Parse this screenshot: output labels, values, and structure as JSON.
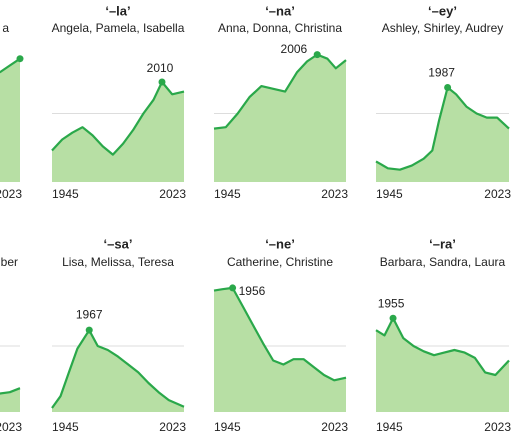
{
  "chart_data": [
    {
      "type": "area",
      "subtitle": "a",
      "xlim": [
        1945,
        2023
      ],
      "xticks": [
        2023
      ],
      "ylim": [
        0,
        100
      ],
      "end_dot": true,
      "color": "#2aa84a",
      "x": [
        2011,
        2017,
        2023
      ],
      "values": [
        80,
        85,
        90
      ]
    },
    {
      "type": "area",
      "title": "‘–la’",
      "subtitle": "Angela, Pamela, Isabella",
      "xlim": [
        1945,
        2023
      ],
      "xticks": [
        1945,
        2023
      ],
      "ylim": [
        0,
        100
      ],
      "peak": 2010,
      "color": "#2aa84a",
      "x": [
        1945,
        1951,
        1957,
        1963,
        1969,
        1975,
        1981,
        1987,
        1993,
        1999,
        2005,
        2010,
        2016,
        2023
      ],
      "values": [
        23,
        31,
        36,
        40,
        34,
        26,
        20,
        28,
        38,
        50,
        60,
        73,
        64,
        66
      ]
    },
    {
      "type": "area",
      "title": "‘–na’",
      "subtitle": "Anna, Donna, Christina",
      "xlim": [
        1945,
        2023
      ],
      "xticks": [
        1945,
        2023
      ],
      "ylim": [
        0,
        100
      ],
      "peak": 2006,
      "color": "#2aa84a",
      "x": [
        1945,
        1952,
        1959,
        1966,
        1973,
        1980,
        1987,
        1994,
        2000,
        2006,
        2012,
        2017,
        2023
      ],
      "values": [
        39,
        40,
        50,
        62,
        70,
        68,
        66,
        80,
        88,
        93,
        90,
        83,
        89
      ]
    },
    {
      "type": "area",
      "title": "‘–ey’",
      "subtitle": "Ashley, Shirley, Audrey",
      "xlim": [
        1945,
        2023
      ],
      "xticks": [
        1945,
        2023
      ],
      "ylim": [
        0,
        100
      ],
      "peak": 1987,
      "color": "#2aa84a",
      "x": [
        1945,
        1952,
        1959,
        1966,
        1973,
        1978,
        1982,
        1987,
        1992,
        1998,
        2004,
        2010,
        2016,
        2023
      ],
      "values": [
        15,
        10,
        9,
        12,
        17,
        23,
        45,
        69,
        64,
        55,
        50,
        47,
        47,
        39
      ]
    },
    {
      "type": "area",
      "subtitle": "ber",
      "xlim": [
        1945,
        2023
      ],
      "xticks": [
        2023
      ],
      "ylim": [
        0,
        100
      ],
      "color": "#2aa84a",
      "x": [
        2011,
        2017,
        2023
      ],
      "values": [
        14,
        15,
        18
      ]
    },
    {
      "type": "area",
      "title": "‘–sa’",
      "subtitle": "Lisa, Melissa, Teresa",
      "xlim": [
        1945,
        2023
      ],
      "xticks": [
        1945,
        2023
      ],
      "ylim": [
        0,
        100
      ],
      "peak": 1967,
      "color": "#2aa84a",
      "x": [
        1945,
        1950,
        1955,
        1960,
        1967,
        1972,
        1978,
        1984,
        1990,
        1996,
        2002,
        2008,
        2014,
        2023
      ],
      "values": [
        3,
        12,
        30,
        48,
        62,
        50,
        47,
        42,
        36,
        30,
        22,
        15,
        9,
        4
      ]
    },
    {
      "type": "area",
      "title": "‘–ne’",
      "subtitle": "Catherine, Christine",
      "xlim": [
        1945,
        2023
      ],
      "xticks": [
        1945,
        2023
      ],
      "ylim": [
        0,
        100
      ],
      "peak": 1956,
      "color": "#2aa84a",
      "x": [
        1945,
        1950,
        1956,
        1962,
        1968,
        1974,
        1980,
        1986,
        1992,
        1998,
        2004,
        2010,
        2016,
        2023
      ],
      "values": [
        92,
        93,
        94,
        80,
        66,
        52,
        39,
        36,
        40,
        40,
        34,
        28,
        24,
        26
      ]
    },
    {
      "type": "area",
      "title": "‘–ra’",
      "subtitle": "Barbara, Sandra, Laura",
      "xlim": [
        1945,
        2023
      ],
      "xticks": [
        1945,
        2023
      ],
      "ylim": [
        0,
        100
      ],
      "peak": 1955,
      "color": "#2aa84a",
      "x": [
        1945,
        1950,
        1955,
        1961,
        1967,
        1973,
        1979,
        1985,
        1991,
        1997,
        2003,
        2009,
        2015,
        2023
      ],
      "values": [
        62,
        58,
        71,
        56,
        50,
        46,
        43,
        45,
        47,
        45,
        41,
        30,
        28,
        39
      ]
    }
  ]
}
